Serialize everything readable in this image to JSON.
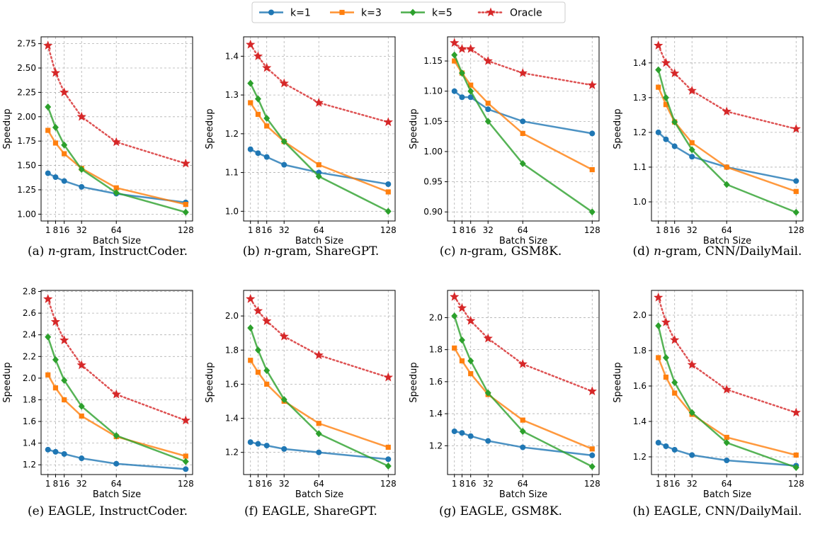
{
  "legend": {
    "placement": "top-center",
    "entries": [
      {
        "name": "k=1",
        "color": "#1f77b4",
        "marker": "circle",
        "style": "solid"
      },
      {
        "name": "k=3",
        "color": "#ff7f0e",
        "marker": "square",
        "style": "solid"
      },
      {
        "name": "k=5",
        "color": "#2ca02c",
        "marker": "diamond",
        "style": "solid"
      },
      {
        "name": "Oracle",
        "color": "#d62728",
        "marker": "star",
        "style": "dotted"
      }
    ]
  },
  "chart_data": [
    {
      "type": "line",
      "caption": "(a) n-gram, InstructCoder.",
      "caption_parts": {
        "label": "(a) ",
        "italic": "n",
        "rest": "-gram, InstructCoder."
      },
      "xlabel": "Batch Size",
      "ylabel": "Speedup",
      "x": [
        1,
        8,
        16,
        32,
        64,
        128
      ],
      "xticks": [
        1,
        8,
        16,
        32,
        64,
        128
      ],
      "xtick_labels": [
        "1",
        "8",
        "16",
        "32",
        "64",
        "128"
      ],
      "ylim": [
        0.93,
        2.82
      ],
      "yticks": [
        1.0,
        1.25,
        1.5,
        1.75,
        2.0,
        2.25,
        2.5,
        2.75
      ],
      "ytick_labels": [
        "1.00",
        "1.25",
        "1.50",
        "1.75",
        "2.00",
        "2.25",
        "2.50",
        "2.75"
      ],
      "grid": true,
      "series": [
        {
          "name": "k=1",
          "values": [
            1.42,
            1.38,
            1.34,
            1.28,
            1.21,
            1.12
          ]
        },
        {
          "name": "k=3",
          "values": [
            1.86,
            1.73,
            1.62,
            1.47,
            1.27,
            1.1
          ]
        },
        {
          "name": "k=5",
          "values": [
            2.1,
            1.89,
            1.71,
            1.46,
            1.22,
            1.02
          ]
        },
        {
          "name": "Oracle",
          "values": [
            2.73,
            2.45,
            2.25,
            2.0,
            1.74,
            1.52
          ]
        }
      ]
    },
    {
      "type": "line",
      "caption": "(b) n-gram, ShareGPT.",
      "caption_parts": {
        "label": "(b) ",
        "italic": "n",
        "rest": "-gram, ShareGPT."
      },
      "xlabel": "Batch Size",
      "ylabel": "Speedup",
      "x": [
        1,
        8,
        16,
        32,
        64,
        128
      ],
      "xticks": [
        1,
        8,
        16,
        32,
        64,
        128
      ],
      "xtick_labels": [
        "1",
        "8",
        "16",
        "32",
        "64",
        "128"
      ],
      "ylim": [
        0.975,
        1.45
      ],
      "yticks": [
        1.0,
        1.1,
        1.2,
        1.3,
        1.4
      ],
      "ytick_labels": [
        "1.0",
        "1.1",
        "1.2",
        "1.3",
        "1.4"
      ],
      "grid": true,
      "series": [
        {
          "name": "k=1",
          "values": [
            1.16,
            1.15,
            1.14,
            1.12,
            1.1,
            1.07
          ]
        },
        {
          "name": "k=3",
          "values": [
            1.28,
            1.25,
            1.22,
            1.18,
            1.12,
            1.05
          ]
        },
        {
          "name": "k=5",
          "values": [
            1.33,
            1.29,
            1.24,
            1.18,
            1.09,
            1.0
          ]
        },
        {
          "name": "Oracle",
          "values": [
            1.43,
            1.4,
            1.37,
            1.33,
            1.28,
            1.23
          ]
        }
      ]
    },
    {
      "type": "line",
      "caption": "(c) n-gram, GSM8K.",
      "caption_parts": {
        "label": "(c) ",
        "italic": "n",
        "rest": "-gram, GSM8K."
      },
      "xlabel": "Batch Size",
      "ylabel": "Speedup",
      "x": [
        1,
        8,
        16,
        32,
        64,
        128
      ],
      "xticks": [
        1,
        8,
        16,
        32,
        64,
        128
      ],
      "xtick_labels": [
        "1",
        "8",
        "16",
        "32",
        "64",
        "128"
      ],
      "ylim": [
        0.885,
        1.19
      ],
      "yticks": [
        0.9,
        0.95,
        1.0,
        1.05,
        1.1,
        1.15
      ],
      "ytick_labels": [
        "0.90",
        "0.95",
        "1.00",
        "1.05",
        "1.10",
        "1.15"
      ],
      "grid": true,
      "series": [
        {
          "name": "k=1",
          "values": [
            1.1,
            1.09,
            1.09,
            1.07,
            1.05,
            1.03
          ]
        },
        {
          "name": "k=3",
          "values": [
            1.15,
            1.13,
            1.11,
            1.08,
            1.03,
            0.97
          ]
        },
        {
          "name": "k=5",
          "values": [
            1.16,
            1.13,
            1.1,
            1.05,
            0.98,
            0.9
          ]
        },
        {
          "name": "Oracle",
          "values": [
            1.18,
            1.17,
            1.17,
            1.15,
            1.13,
            1.11
          ]
        }
      ]
    },
    {
      "type": "line",
      "caption": "(d) n-gram, CNN/DailyMail.",
      "caption_parts": {
        "label": "(d) ",
        "italic": "n",
        "rest": "-gram, CNN/DailyMail."
      },
      "xlabel": "Batch Size",
      "ylabel": "Speedup",
      "x": [
        1,
        8,
        16,
        32,
        64,
        128
      ],
      "xticks": [
        1,
        8,
        16,
        32,
        64,
        128
      ],
      "xtick_labels": [
        "1",
        "8",
        "16",
        "32",
        "64",
        "128"
      ],
      "ylim": [
        0.945,
        1.475
      ],
      "yticks": [
        1.0,
        1.1,
        1.2,
        1.3,
        1.4
      ],
      "ytick_labels": [
        "1.0",
        "1.1",
        "1.2",
        "1.3",
        "1.4"
      ],
      "grid": true,
      "series": [
        {
          "name": "k=1",
          "values": [
            1.2,
            1.18,
            1.16,
            1.13,
            1.1,
            1.06
          ]
        },
        {
          "name": "k=3",
          "values": [
            1.33,
            1.28,
            1.23,
            1.17,
            1.1,
            1.03
          ]
        },
        {
          "name": "k=5",
          "values": [
            1.38,
            1.3,
            1.23,
            1.15,
            1.05,
            0.97
          ]
        },
        {
          "name": "Oracle",
          "values": [
            1.45,
            1.4,
            1.37,
            1.32,
            1.26,
            1.21
          ]
        }
      ]
    },
    {
      "type": "line",
      "caption": "(e) EAGLE, InstructCoder.",
      "caption_parts": {
        "label": "(e) ",
        "italic": "",
        "rest": "EAGLE, InstructCoder."
      },
      "xlabel": "Batch Size",
      "ylabel": "Speedup",
      "x": [
        1,
        8,
        16,
        32,
        64,
        128
      ],
      "xticks": [
        1,
        8,
        16,
        32,
        64,
        128
      ],
      "xtick_labels": [
        "1",
        "8",
        "16",
        "32",
        "64",
        "128"
      ],
      "ylim": [
        1.11,
        2.81
      ],
      "yticks": [
        1.2,
        1.4,
        1.6,
        1.8,
        2.0,
        2.2,
        2.4,
        2.6,
        2.8
      ],
      "ytick_labels": [
        "1.2",
        "1.4",
        "1.6",
        "1.8",
        "2.0",
        "2.2",
        "2.4",
        "2.6",
        "2.8"
      ],
      "grid": true,
      "series": [
        {
          "name": "k=1",
          "values": [
            1.34,
            1.32,
            1.3,
            1.26,
            1.21,
            1.16
          ]
        },
        {
          "name": "k=3",
          "values": [
            2.03,
            1.91,
            1.8,
            1.65,
            1.46,
            1.28
          ]
        },
        {
          "name": "k=5",
          "values": [
            2.38,
            2.17,
            1.98,
            1.74,
            1.47,
            1.23
          ]
        },
        {
          "name": "Oracle",
          "values": [
            2.73,
            2.52,
            2.35,
            2.12,
            1.85,
            1.61
          ]
        }
      ]
    },
    {
      "type": "line",
      "caption": "(f) EAGLE, ShareGPT.",
      "caption_parts": {
        "label": "(f) ",
        "italic": "",
        "rest": "EAGLE, ShareGPT."
      },
      "xlabel": "Batch Size",
      "ylabel": "Speedup",
      "x": [
        1,
        8,
        16,
        32,
        64,
        128
      ],
      "xticks": [
        1,
        8,
        16,
        32,
        64,
        128
      ],
      "xtick_labels": [
        "1",
        "8",
        "16",
        "32",
        "64",
        "128"
      ],
      "ylim": [
        1.07,
        2.15
      ],
      "yticks": [
        1.2,
        1.4,
        1.6,
        1.8,
        2.0
      ],
      "ytick_labels": [
        "1.2",
        "1.4",
        "1.6",
        "1.8",
        "2.0"
      ],
      "grid": true,
      "series": [
        {
          "name": "k=1",
          "values": [
            1.26,
            1.25,
            1.24,
            1.22,
            1.2,
            1.16
          ]
        },
        {
          "name": "k=3",
          "values": [
            1.74,
            1.67,
            1.6,
            1.5,
            1.37,
            1.23
          ]
        },
        {
          "name": "k=5",
          "values": [
            1.93,
            1.8,
            1.68,
            1.51,
            1.31,
            1.12
          ]
        },
        {
          "name": "Oracle",
          "values": [
            2.1,
            2.03,
            1.97,
            1.88,
            1.77,
            1.64
          ]
        }
      ]
    },
    {
      "type": "line",
      "caption": "(g) EAGLE, GSM8K.",
      "caption_parts": {
        "label": "(g) ",
        "italic": "",
        "rest": "EAGLE, GSM8K."
      },
      "xlabel": "Batch Size",
      "ylabel": "Speedup",
      "x": [
        1,
        8,
        16,
        32,
        64,
        128
      ],
      "xticks": [
        1,
        8,
        16,
        32,
        64,
        128
      ],
      "xtick_labels": [
        "1",
        "8",
        "16",
        "32",
        "64",
        "128"
      ],
      "ylim": [
        1.02,
        2.17
      ],
      "yticks": [
        1.2,
        1.4,
        1.6,
        1.8,
        2.0
      ],
      "ytick_labels": [
        "1.2",
        "1.4",
        "1.6",
        "1.8",
        "2.0"
      ],
      "grid": true,
      "series": [
        {
          "name": "k=1",
          "values": [
            1.29,
            1.28,
            1.26,
            1.23,
            1.19,
            1.14
          ]
        },
        {
          "name": "k=3",
          "values": [
            1.81,
            1.73,
            1.65,
            1.52,
            1.36,
            1.18
          ]
        },
        {
          "name": "k=5",
          "values": [
            2.01,
            1.86,
            1.73,
            1.53,
            1.29,
            1.07
          ]
        },
        {
          "name": "Oracle",
          "values": [
            2.13,
            2.06,
            1.98,
            1.87,
            1.71,
            1.54
          ]
        }
      ]
    },
    {
      "type": "line",
      "caption": "(h) EAGLE, CNN/DailyMail.",
      "caption_parts": {
        "label": "(h) ",
        "italic": "",
        "rest": "EAGLE, CNN/DailyMail."
      },
      "xlabel": "Batch Size",
      "ylabel": "Speedup",
      "x": [
        1,
        8,
        16,
        32,
        64,
        128
      ],
      "xticks": [
        1,
        8,
        16,
        32,
        64,
        128
      ],
      "xtick_labels": [
        "1",
        "8",
        "16",
        "32",
        "64",
        "128"
      ],
      "ylim": [
        1.1,
        2.14
      ],
      "yticks": [
        1.2,
        1.4,
        1.6,
        1.8,
        2.0
      ],
      "ytick_labels": [
        "1.2",
        "1.4",
        "1.6",
        "1.8",
        "2.0"
      ],
      "grid": true,
      "series": [
        {
          "name": "k=1",
          "values": [
            1.28,
            1.26,
            1.24,
            1.21,
            1.18,
            1.15
          ]
        },
        {
          "name": "k=3",
          "values": [
            1.76,
            1.65,
            1.56,
            1.44,
            1.31,
            1.21
          ]
        },
        {
          "name": "k=5",
          "values": [
            1.94,
            1.76,
            1.62,
            1.45,
            1.28,
            1.14
          ]
        },
        {
          "name": "Oracle",
          "values": [
            2.1,
            1.96,
            1.86,
            1.72,
            1.58,
            1.45
          ]
        }
      ]
    }
  ]
}
